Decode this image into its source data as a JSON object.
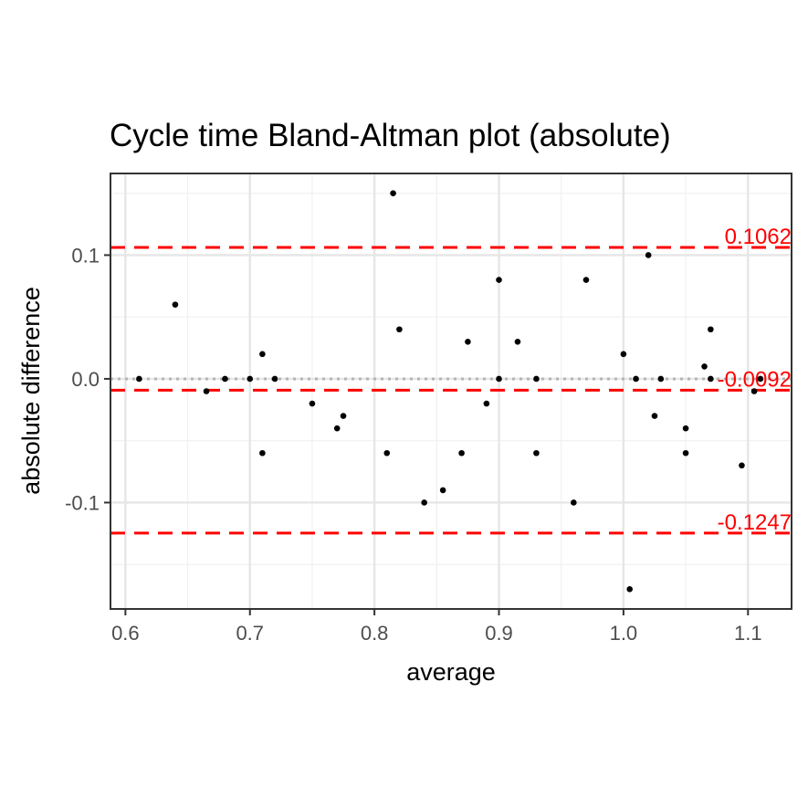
{
  "chart_data": {
    "type": "scatter",
    "title": "Cycle time   Bland-Altman plot (absolute)",
    "xlabel": "average",
    "ylabel": "absolute difference",
    "xlim": [
      0.588,
      1.135
    ],
    "ylim": [
      -0.186,
      0.166
    ],
    "x_ticks": [
      0.6,
      0.7,
      0.8,
      0.9,
      1.0,
      1.1
    ],
    "x_tick_labels": [
      "0.6",
      "0.7",
      "0.8",
      "0.9",
      "1.0",
      "1.1"
    ],
    "y_ticks": [
      -0.1,
      0.0,
      0.1
    ],
    "y_tick_labels": [
      "-0.1",
      "0.0",
      "0.1"
    ],
    "grid": true,
    "zero_line": 0.0,
    "reference_lines": [
      {
        "value": 0.1062,
        "label": "0.1062",
        "color": "#ff0000",
        "style": "dashed"
      },
      {
        "value": -0.0092,
        "label": "-0.0092",
        "color": "#ff0000",
        "style": "dashed"
      },
      {
        "value": -0.1247,
        "label": "-0.1247",
        "color": "#ff0000",
        "style": "dashed"
      }
    ],
    "point_color": "#000000",
    "points": [
      {
        "x": 0.611,
        "y": 0.0
      },
      {
        "x": 0.64,
        "y": 0.06
      },
      {
        "x": 0.665,
        "y": -0.01
      },
      {
        "x": 0.68,
        "y": 0.0
      },
      {
        "x": 0.7,
        "y": 0.0
      },
      {
        "x": 0.71,
        "y": 0.02
      },
      {
        "x": 0.71,
        "y": -0.06
      },
      {
        "x": 0.72,
        "y": 0.0
      },
      {
        "x": 0.75,
        "y": -0.02
      },
      {
        "x": 0.77,
        "y": -0.04
      },
      {
        "x": 0.775,
        "y": -0.03
      },
      {
        "x": 0.81,
        "y": -0.06
      },
      {
        "x": 0.815,
        "y": 0.15
      },
      {
        "x": 0.82,
        "y": 0.04
      },
      {
        "x": 0.84,
        "y": -0.1
      },
      {
        "x": 0.855,
        "y": -0.09
      },
      {
        "x": 0.87,
        "y": -0.06
      },
      {
        "x": 0.875,
        "y": 0.03
      },
      {
        "x": 0.89,
        "y": -0.02
      },
      {
        "x": 0.9,
        "y": 0.08
      },
      {
        "x": 0.9,
        "y": 0.0
      },
      {
        "x": 0.915,
        "y": 0.03
      },
      {
        "x": 0.93,
        "y": 0.0
      },
      {
        "x": 0.93,
        "y": -0.06
      },
      {
        "x": 0.96,
        "y": -0.1
      },
      {
        "x": 0.97,
        "y": 0.08
      },
      {
        "x": 1.0,
        "y": 0.02
      },
      {
        "x": 1.005,
        "y": -0.17
      },
      {
        "x": 1.01,
        "y": 0.0
      },
      {
        "x": 1.02,
        "y": 0.1
      },
      {
        "x": 1.025,
        "y": -0.03
      },
      {
        "x": 1.03,
        "y": 0.0
      },
      {
        "x": 1.05,
        "y": -0.04
      },
      {
        "x": 1.05,
        "y": -0.06
      },
      {
        "x": 1.065,
        "y": 0.01
      },
      {
        "x": 1.07,
        "y": 0.04
      },
      {
        "x": 1.07,
        "y": 0.0
      },
      {
        "x": 1.095,
        "y": -0.07
      },
      {
        "x": 1.105,
        "y": -0.01
      },
      {
        "x": 1.11,
        "y": 0.0
      }
    ]
  }
}
